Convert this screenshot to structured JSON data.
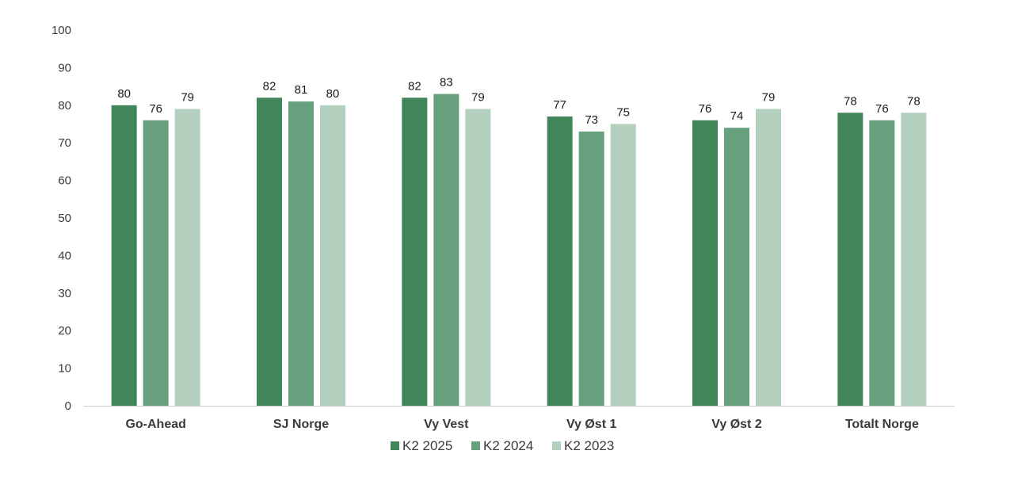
{
  "chart_data": {
    "type": "bar",
    "title": "",
    "xlabel": "",
    "ylabel": "",
    "ylim": [
      0,
      100
    ],
    "yticks": [
      "0",
      "10",
      "20",
      "30",
      "40",
      "50",
      "60",
      "70",
      "80",
      "90",
      "100"
    ],
    "grid": false,
    "legend_position": "bottom",
    "categories": [
      "Go-Ahead",
      "SJ Norge",
      "Vy Vest",
      "Vy Øst 1",
      "Vy Øst 2",
      "Totalt Norge"
    ],
    "series": [
      {
        "name": "K2 2025",
        "color": "#41855a",
        "values": [
          80,
          82,
          82,
          77,
          76,
          78
        ]
      },
      {
        "name": "K2 2024",
        "color": "#67a07d",
        "values": [
          76,
          81,
          83,
          73,
          74,
          76
        ]
      },
      {
        "name": "K2 2023",
        "color": "#b3cfbe",
        "values": [
          79,
          80,
          79,
          75,
          79,
          78
        ]
      }
    ]
  }
}
